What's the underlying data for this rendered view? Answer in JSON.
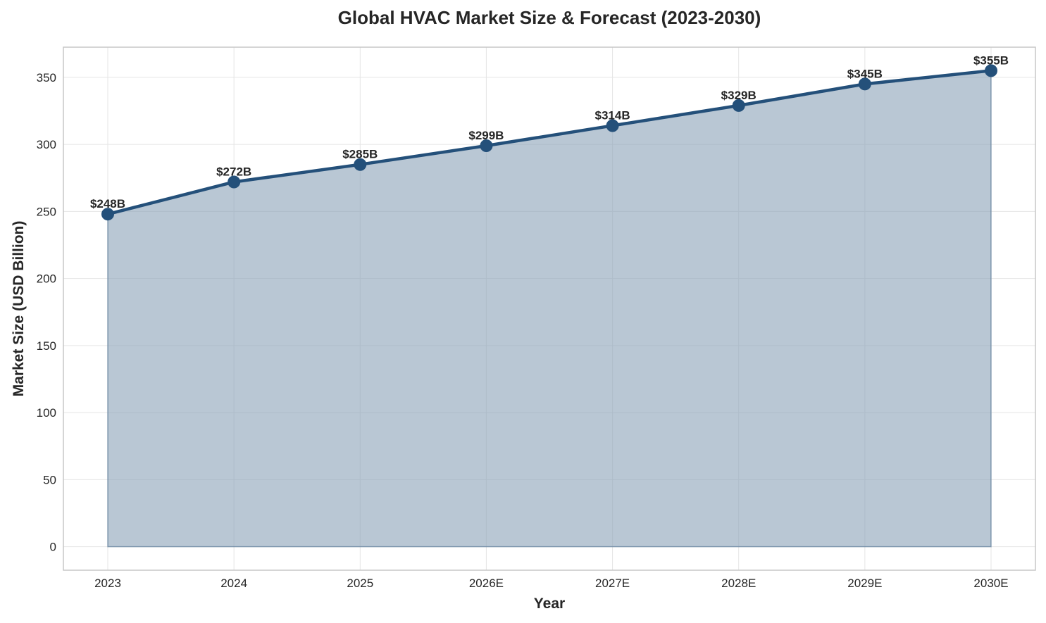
{
  "chart_data": {
    "type": "area",
    "title": "Global HVAC Market Size & Forecast (2023-2030)",
    "xlabel": "Year",
    "ylabel": "Market Size (USD Billion)",
    "categories": [
      "2023",
      "2024",
      "2025",
      "2026E",
      "2027E",
      "2028E",
      "2029E",
      "2030E"
    ],
    "series": [
      {
        "values": [
          248,
          272,
          285,
          299,
          314,
          329,
          345,
          355
        ],
        "labels": [
          "$248B",
          "$272B",
          "$285B",
          "$299B",
          "$314B",
          "$329B",
          "$345B",
          "$355B"
        ]
      }
    ],
    "y_ticks": [
      "0",
      "50",
      "100",
      "150",
      "200",
      "250",
      "300",
      "350"
    ],
    "ylim": [
      -17.5,
      372.5
    ],
    "grid": true,
    "legend": "none",
    "colors": {
      "line": "#24507a",
      "fill": "#8aa1b8",
      "grid": "#e5e5e5",
      "frame": "#c7c7c7"
    }
  }
}
